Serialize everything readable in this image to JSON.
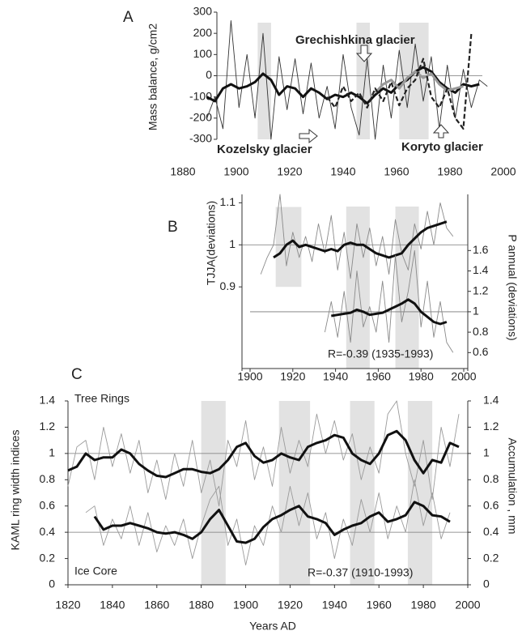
{
  "chart_data": [
    {
      "type": "line",
      "label": "A",
      "y_label": "Mass balance, g/cm2",
      "xlim": [
        1880,
        2000
      ],
      "xticks": [
        1880,
        1900,
        1920,
        1940,
        1960,
        1980,
        2000
      ],
      "ylim": [
        -300,
        300
      ],
      "yticks": [
        -300,
        -200,
        -100,
        0,
        100,
        200,
        300
      ],
      "shaded_periods": [
        {
          "x": [
            1908,
            1913
          ]
        },
        {
          "x": [
            1945,
            1950
          ]
        },
        {
          "x": [
            1961,
            1972
          ]
        }
      ],
      "reference_lines": [
        {
          "value": 0,
          "axis": "y"
        }
      ],
      "annotations": [
        "Grechishkina glacier",
        "Kozelsky glacier",
        "Koryto glacier"
      ],
      "x": [
        1889,
        1892,
        1895,
        1898,
        1901,
        1904,
        1907,
        1910,
        1913,
        1916,
        1919,
        1922,
        1925,
        1928,
        1931,
        1934,
        1937,
        1940,
        1943,
        1946,
        1949,
        1952,
        1955,
        1958,
        1961,
        1964,
        1967,
        1970,
        1973,
        1976,
        1979,
        1982,
        1985,
        1988,
        1991,
        1994
      ],
      "series": [
        {
          "color": "#333333",
          "width": 0.9,
          "values": [
            -200,
            -100,
            -250,
            260,
            -150,
            100,
            -200,
            200,
            -300,
            90,
            -160,
            80,
            -180,
            60,
            -200,
            -50,
            -250,
            100,
            -150,
            -280,
            80,
            -300,
            50,
            -200,
            120,
            -150,
            150,
            -120,
            90,
            -250,
            50,
            -200,
            30,
            -150,
            -20,
            -50
          ]
        },
        {
          "color": "#111111",
          "width": 3,
          "values": [
            -100,
            -120,
            -60,
            -40,
            -60,
            -50,
            -30,
            10,
            -20,
            -90,
            -50,
            -60,
            -100,
            -60,
            -80,
            -110,
            -90,
            -100,
            -80,
            -100,
            -130,
            -90,
            -60,
            -80,
            -40,
            -20,
            20,
            40,
            20,
            -30,
            -60,
            -80,
            -40,
            -50,
            -40,
            null
          ]
        },
        {
          "color": "#999999",
          "width": 3,
          "values": [
            null,
            null,
            null,
            null,
            null,
            null,
            null,
            null,
            null,
            null,
            null,
            null,
            null,
            null,
            null,
            null,
            null,
            null,
            null,
            null,
            null,
            -80,
            -40,
            -20,
            -60,
            -10,
            20,
            -10,
            10,
            -40,
            -70,
            -60,
            -50,
            null,
            null,
            null
          ]
        },
        {
          "color": "#222222",
          "width": 2.2,
          "dashed": true,
          "values": [
            null,
            null,
            null,
            null,
            null,
            null,
            null,
            null,
            null,
            null,
            null,
            null,
            null,
            null,
            null,
            -100,
            -150,
            -50,
            -120,
            -80,
            -150,
            -60,
            -120,
            -30,
            -140,
            -60,
            -20,
            80,
            -100,
            -150,
            -60,
            -200,
            -250,
            200,
            null,
            null
          ]
        }
      ]
    },
    {
      "type": "line",
      "label": "B",
      "y_label": "TJJA(deviations)",
      "y2_label": "P annual (deviations)",
      "xlim": [
        1900,
        2000
      ],
      "xticks": [
        1900,
        1920,
        1940,
        1960,
        1980,
        2000
      ],
      "ylim": [
        0.7,
        1.12
      ],
      "yticks": [
        0.9,
        1,
        1.1
      ],
      "y2lim": [
        0.42,
        2.15
      ],
      "y2ticks": [
        0.6,
        0.8,
        1,
        1.2,
        1.4,
        1.6
      ],
      "shaded_periods": [
        {
          "x": [
            1912,
            1924
          ],
          "y": [
            0.9,
            1.09
          ]
        },
        {
          "x": [
            1945,
            1956
          ]
        },
        {
          "x": [
            1968,
            1979
          ]
        }
      ],
      "reference_lines": [
        {
          "value": 1,
          "axis": "y"
        },
        {
          "value": 1,
          "axis": "y2"
        }
      ],
      "annotations": [
        "R=-0.39 (1935-1993)"
      ],
      "x": [
        1905,
        1908,
        1911,
        1914,
        1917,
        1920,
        1923,
        1926,
        1929,
        1932,
        1935,
        1938,
        1941,
        1944,
        1947,
        1950,
        1953,
        1956,
        1959,
        1962,
        1965,
        1968,
        1971,
        1974,
        1977,
        1980,
        1983,
        1986,
        1989,
        1992,
        1995
      ],
      "series": [
        {
          "color": "#8a8a8a",
          "width": 0.9,
          "values": [
            0.93,
            0.97,
            1.0,
            1.12,
            0.95,
            1.03,
            0.97,
            1.02,
            0.96,
            1.05,
            0.98,
            1.07,
            0.94,
            1.03,
            0.92,
            1.05,
            0.97,
            1.04,
            0.95,
            1.02,
            0.93,
            1.06,
            0.98,
            0.94,
            1.05,
            0.99,
            1.08,
            1.0,
            1.1,
            1.04,
            1.02
          ]
        },
        {
          "color": "#111111",
          "width": 3,
          "values": [
            null,
            null,
            0.97,
            0.98,
            1.0,
            1.01,
            0.995,
            1.0,
            0.995,
            0.99,
            0.985,
            0.99,
            0.985,
            1.0,
            1.005,
            1.0,
            1.0,
            0.99,
            0.98,
            0.975,
            0.97,
            0.975,
            0.98,
            1.0,
            1.015,
            1.03,
            1.04,
            1.045,
            1.05,
            1.055,
            null
          ]
        },
        {
          "color": "#8a8a8a",
          "width": 0.9,
          "axis": "y2",
          "values": [
            null,
            null,
            null,
            null,
            null,
            null,
            null,
            null,
            null,
            null,
            0.8,
            1.1,
            0.75,
            1.2,
            0.7,
            1.4,
            0.85,
            1.05,
            0.8,
            1.3,
            0.7,
            1.55,
            0.9,
            1.2,
            1.6,
            0.85,
            1.3,
            0.75,
            1.1,
            0.7,
            0.6
          ]
        },
        {
          "color": "#111111",
          "width": 3,
          "axis": "y2",
          "values": [
            null,
            null,
            null,
            null,
            null,
            null,
            null,
            null,
            null,
            null,
            null,
            0.96,
            0.97,
            0.98,
            0.99,
            1.02,
            1.0,
            0.97,
            0.98,
            0.99,
            1.02,
            1.05,
            1.08,
            1.12,
            1.08,
            1.0,
            0.95,
            0.9,
            0.88,
            0.9,
            null
          ]
        }
      ]
    },
    {
      "type": "line",
      "label": "C",
      "y_label": "KAML ring width indices",
      "y2_label": "Accumulation , mm",
      "x_label": "Years AD",
      "xlim": [
        1820,
        2000
      ],
      "xticks": [
        1820,
        1840,
        1860,
        1880,
        1900,
        1920,
        1940,
        1960,
        1980,
        2000
      ],
      "ylim": [
        0,
        1.4
      ],
      "yticks": [
        0,
        0.2,
        0.4,
        0.6,
        0.8,
        1,
        1.2,
        1.4
      ],
      "y2lim": [
        0,
        1.4
      ],
      "y2ticks": [
        0,
        0.2,
        0.4,
        0.6,
        0.8,
        1,
        1.2,
        1.4
      ],
      "shaded_periods": [
        {
          "x": [
            1880,
            1891
          ]
        },
        {
          "x": [
            1915,
            1929
          ]
        },
        {
          "x": [
            1947,
            1958
          ]
        },
        {
          "x": [
            1973,
            1984
          ]
        }
      ],
      "reference_lines": [
        {
          "value": 1,
          "axis": "y"
        },
        {
          "value": 0.4,
          "axis": "y"
        }
      ],
      "annotations": [
        "Tree Rings",
        "Ice Core",
        "R=-0.37 (1910-1993)"
      ],
      "x": [
        1820,
        1824,
        1828,
        1832,
        1836,
        1840,
        1844,
        1848,
        1852,
        1856,
        1860,
        1864,
        1868,
        1872,
        1876,
        1880,
        1884,
        1888,
        1892,
        1896,
        1900,
        1904,
        1908,
        1912,
        1916,
        1920,
        1924,
        1928,
        1932,
        1936,
        1940,
        1944,
        1948,
        1952,
        1956,
        1960,
        1964,
        1968,
        1972,
        1976,
        1980,
        1984,
        1988,
        1992,
        1996
      ],
      "series": [
        {
          "color": "#9a9a9a",
          "width": 0.9,
          "values": [
            0.75,
            1.05,
            1.1,
            0.8,
            1.2,
            0.9,
            1.15,
            0.85,
            1.1,
            0.7,
            0.95,
            0.65,
            1.0,
            0.75,
            1.1,
            0.7,
            0.95,
            0.6,
            1.1,
            0.9,
            1.25,
            0.8,
            1.05,
            0.75,
            1.2,
            0.85,
            1.1,
            0.9,
            1.3,
            1.0,
            1.25,
            0.95,
            1.15,
            0.8,
            1.05,
            0.85,
            1.3,
            1.4,
            1.0,
            0.75,
            1.1,
            0.65,
            1.2,
            0.9,
            1.3
          ]
        },
        {
          "color": "#111111",
          "width": 3,
          "values": [
            0.87,
            0.9,
            1.0,
            0.95,
            0.97,
            0.97,
            1.03,
            1.0,
            0.92,
            0.87,
            0.83,
            0.82,
            0.85,
            0.88,
            0.88,
            0.86,
            0.85,
            0.88,
            0.95,
            1.05,
            1.08,
            0.98,
            0.93,
            0.95,
            1.0,
            0.97,
            0.95,
            1.05,
            1.08,
            1.1,
            1.14,
            1.12,
            1.0,
            0.95,
            0.92,
            1.0,
            1.14,
            1.17,
            1.1,
            0.95,
            0.85,
            0.95,
            0.93,
            1.08,
            1.05
          ]
        },
        {
          "color": "#9a9a9a",
          "width": 0.9,
          "axis": "y2",
          "values": [
            null,
            null,
            0.55,
            0.6,
            0.3,
            0.5,
            0.35,
            0.6,
            0.3,
            0.55,
            0.25,
            0.45,
            0.3,
            0.5,
            0.2,
            0.45,
            0.65,
            0.75,
            0.3,
            0.5,
            0.15,
            0.45,
            0.3,
            0.6,
            0.4,
            0.75,
            0.45,
            0.7,
            0.35,
            0.55,
            0.2,
            0.5,
            0.3,
            0.65,
            0.4,
            0.7,
            0.35,
            0.6,
            0.4,
            0.8,
            0.45,
            0.7,
            0.35,
            0.55,
            null
          ]
        },
        {
          "color": "#111111",
          "width": 3,
          "axis": "y2",
          "values": [
            null,
            null,
            null,
            0.52,
            0.42,
            0.45,
            0.45,
            0.47,
            0.45,
            0.43,
            0.4,
            0.39,
            0.4,
            0.38,
            0.35,
            0.4,
            0.5,
            0.57,
            0.45,
            0.33,
            0.32,
            0.35,
            0.44,
            0.5,
            0.53,
            0.57,
            0.6,
            0.52,
            0.5,
            0.47,
            0.38,
            0.42,
            0.45,
            0.47,
            0.52,
            0.55,
            0.48,
            0.5,
            0.53,
            0.63,
            0.6,
            0.53,
            0.52,
            0.48,
            null
          ]
        }
      ]
    }
  ]
}
